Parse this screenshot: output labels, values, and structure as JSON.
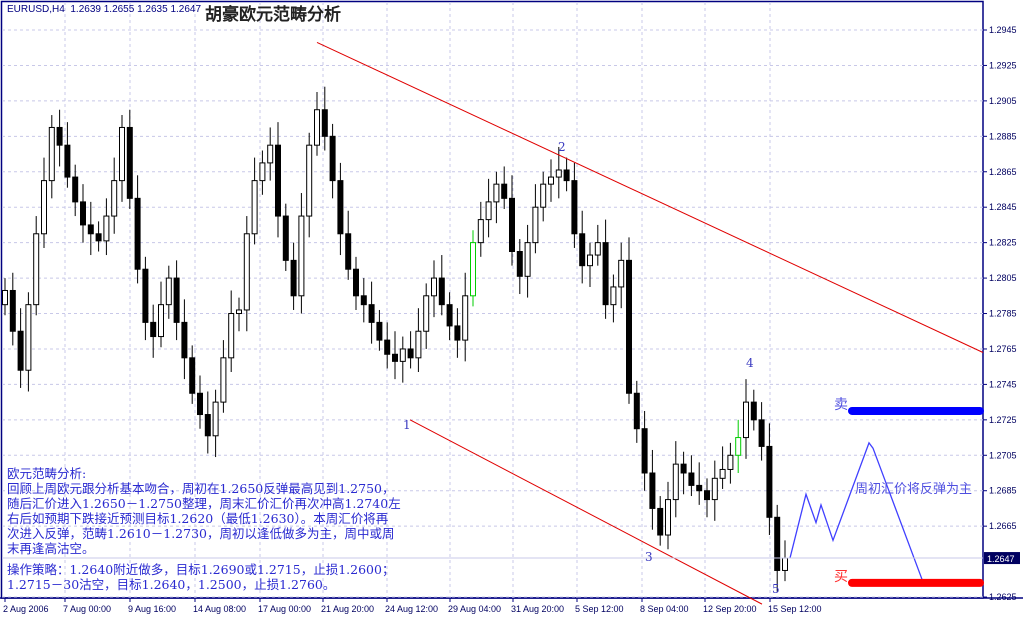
{
  "header": {
    "symbol": "EURUSD,H4",
    "ohlc_text": "1.2639 1.2655 1.2635 1.2647",
    "title": "胡豪欧元范畴分析"
  },
  "notes": {
    "heading": "欧元范畴分析:",
    "lines": [
      "回顾上周欧元跟分析基本吻合，周初在1.2650反弹最高见到1.2750，",
      "随后汇价进入1.2650－1.2750整理，周末汇价汇价再次冲高1.2740左",
      "右后如预期下跌接近预测目标1.2620（最低1.2630）。本周汇价将再",
      "次进入反弹，范畴1.2610－1.2730，周初以逢低做多为主，周中或周",
      "末再逢高沽空。"
    ],
    "strategy": [
      "操作策略：1.2640附近做多，目标1.2690或1.2715，止损1.2600；",
      "1.2715－30沽空，目标1.2640，1.2500，止损1.2760。"
    ]
  },
  "annotations": {
    "sell_label": "卖",
    "buy_label": "买",
    "forecast_text": "周初汇价将反弹为主",
    "waves": [
      "1",
      "2",
      "3",
      "4",
      "5"
    ]
  },
  "chart_data": {
    "type": "candlestick",
    "symbol": "EURUSD",
    "timeframe": "H4",
    "ylim": [
      1.262,
      1.2955
    ],
    "yticks": [
      "1.2945",
      "1.2925",
      "1.2905",
      "1.2885",
      "1.2865",
      "1.2845",
      "1.2825",
      "1.2805",
      "1.2785",
      "1.2765",
      "1.2745",
      "1.2725",
      "1.2705",
      "1.2685",
      "1.2665",
      "1.2625"
    ],
    "xticks": [
      "2 Aug 2006",
      "7 Aug 00:00",
      "9 Aug 16:00",
      "14 Aug 08:00",
      "17 Aug 00:00",
      "21 Aug 20:00",
      "24 Aug 12:00",
      "29 Aug 04:00",
      "31 Aug 20:00",
      "5 Sep 12:00",
      "8 Sep 04:00",
      "12 Sep 20:00",
      "15 Sep 12:00"
    ],
    "current_price": "1.2647",
    "grid": true,
    "first_open": 1.279,
    "closes": [
      1.2798,
      1.2775,
      1.2753,
      1.279,
      1.283,
      1.286,
      1.289,
      1.288,
      1.2862,
      1.2848,
      1.2835,
      1.283,
      1.2826,
      1.284,
      1.286,
      1.289,
      1.285,
      1.281,
      1.278,
      1.2772,
      1.279,
      1.2805,
      1.278,
      1.276,
      1.274,
      1.2728,
      1.2716,
      1.2735,
      1.276,
      1.2785,
      1.2787,
      1.283,
      1.286,
      1.287,
      1.288,
      1.284,
      1.2815,
      1.2795,
      1.284,
      1.288,
      1.29,
      1.2885,
      1.286,
      1.283,
      1.281,
      1.2795,
      1.279,
      1.278,
      1.277,
      1.2762,
      1.2758,
      1.2765,
      1.276,
      1.2775,
      1.2795,
      1.2805,
      1.279,
      1.2778,
      1.277,
      1.2795,
      1.2825,
      1.2838,
      1.2848,
      1.2858,
      1.285,
      1.282,
      1.2806,
      1.2825,
      1.2845,
      1.2858,
      1.2862,
      1.2866,
      1.286,
      1.283,
      1.2812,
      1.2818,
      1.2825,
      1.279,
      1.28,
      1.2815,
      1.274,
      1.272,
      1.2695,
      1.2675,
      1.266,
      1.268,
      1.27,
      1.2695,
      1.2688,
      1.2685,
      1.268,
      1.2692,
      1.2697,
      1.2705,
      1.2715,
      1.2735,
      1.2725,
      1.271,
      1.267,
      1.264,
      1.2647
    ],
    "trendlines": [
      {
        "from": 1.2938,
        "to": 1.2763,
        "color": "#e00000"
      },
      {
        "from": 1.2725,
        "to": 1.2621,
        "color": "#e00000"
      }
    ],
    "sell_level": 1.273,
    "buy_level": 1.2633,
    "forecast_path": [
      1.2647,
      1.2683,
      1.2667,
      1.2677,
      1.2657,
      1.2712,
      1.2709,
      1.2635
    ],
    "colors": {
      "sell": "#0000ff",
      "buy": "#ff0000",
      "forecast": "#4040ff",
      "axis": "#000080",
      "grid": "#c8c8e8",
      "bull_highlight": "#00cc00"
    }
  }
}
